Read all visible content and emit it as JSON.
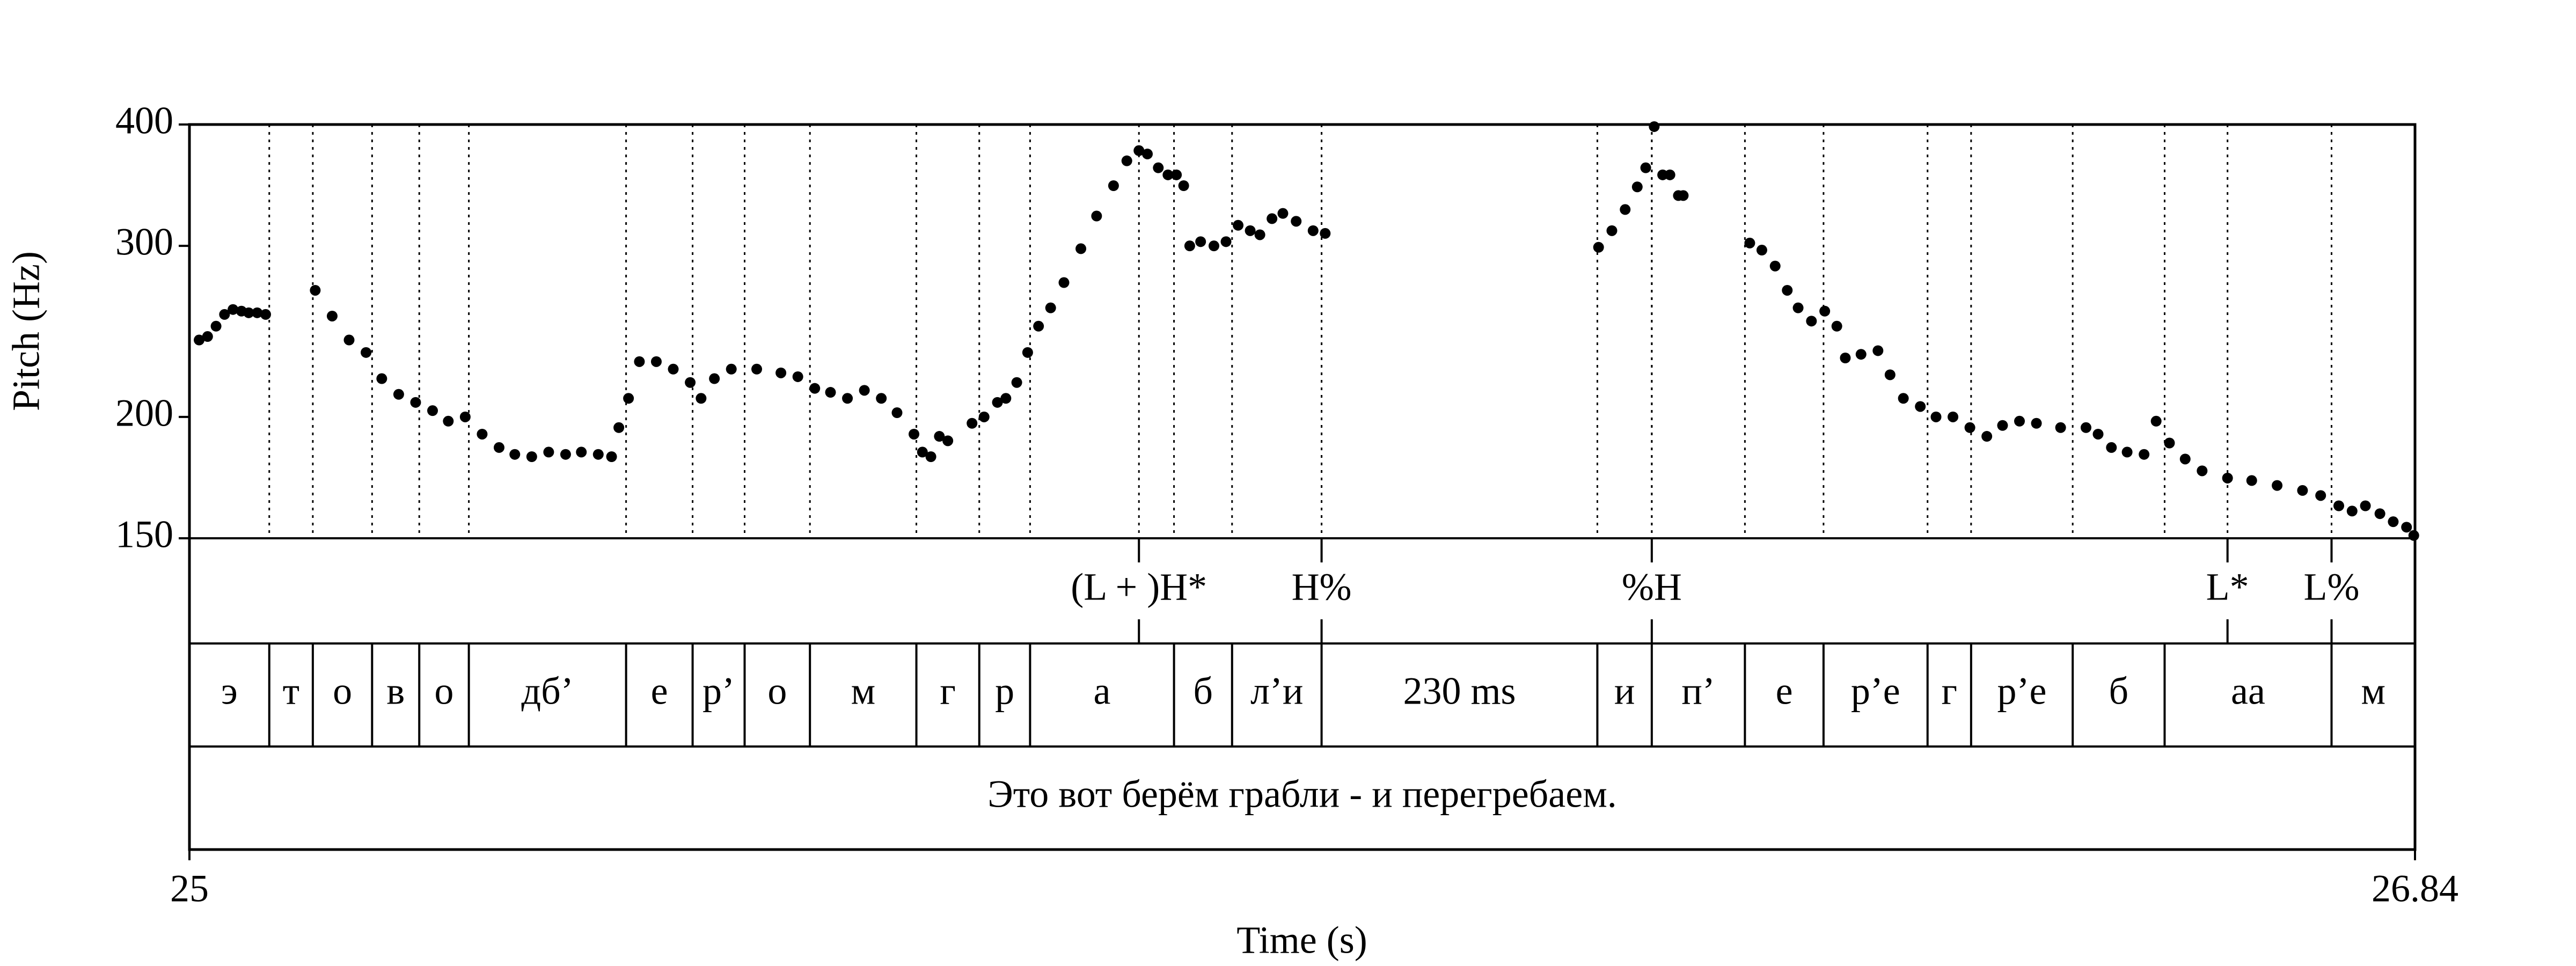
{
  "chart_data": {
    "type": "scatter",
    "xlabel": "Time (s)",
    "ylabel": "Pitch (Hz)",
    "xlim": [
      25,
      26.84
    ],
    "xticks": [
      25,
      26.84
    ],
    "ylim": [
      150,
      400
    ],
    "yticks": [
      150,
      200,
      300,
      400
    ],
    "log_y": true,
    "color": "#000000",
    "x": [
      25.008,
      25.015,
      25.022,
      25.029,
      25.036,
      25.043,
      25.049,
      25.056,
      25.063,
      25.104,
      25.118,
      25.132,
      25.146,
      25.159,
      25.173,
      25.187,
      25.201,
      25.214,
      25.228,
      25.242,
      25.256,
      25.269,
      25.283,
      25.297,
      25.311,
      25.324,
      25.338,
      25.349,
      25.355,
      25.363,
      25.372,
      25.386,
      25.4,
      25.414,
      25.423,
      25.434,
      25.448,
      25.469,
      25.489,
      25.503,
      25.517,
      25.53,
      25.544,
      25.558,
      25.572,
      25.585,
      25.599,
      25.606,
      25.613,
      25.62,
      25.627,
      25.647,
      25.657,
      25.668,
      25.675,
      25.684,
      25.693,
      25.702,
      25.712,
      25.723,
      25.737,
      25.75,
      25.764,
      25.775,
      25.785,
      25.792,
      25.801,
      25.809,
      25.816,
      25.822,
      25.827,
      25.836,
      25.847,
      25.857,
      25.867,
      25.877,
      25.885,
      25.895,
      25.904,
      25.915,
      25.929,
      25.939,
      26.165,
      26.176,
      26.187,
      26.197,
      26.204,
      26.211,
      26.218,
      26.224,
      26.231,
      26.235,
      26.29,
      26.3,
      26.311,
      26.321,
      26.33,
      26.341,
      26.352,
      26.362,
      26.369,
      26.382,
      26.396,
      26.406,
      26.417,
      26.431,
      26.444,
      26.458,
      26.472,
      26.486,
      26.499,
      26.513,
      26.527,
      26.547,
      26.568,
      26.578,
      26.589,
      26.602,
      26.616,
      26.626,
      26.637,
      26.65,
      26.664,
      26.685,
      26.705,
      26.726,
      26.747,
      26.762,
      26.777,
      26.788,
      26.799,
      26.811,
      26.822,
      26.833,
      26.839
    ],
    "values": [
      240,
      242,
      248,
      255,
      258,
      257,
      256,
      256,
      255,
      270,
      254,
      240,
      233,
      219,
      211,
      207,
      203,
      198,
      200,
      192,
      186,
      183,
      182,
      184,
      183,
      184,
      183,
      182,
      195,
      209,
      228,
      228,
      224,
      217,
      209,
      219,
      224,
      224,
      222,
      220,
      214,
      212,
      209,
      213,
      209,
      202,
      192,
      184,
      182,
      191,
      189,
      197,
      200,
      207,
      209,
      217,
      233,
      248,
      259,
      275,
      298,
      322,
      346,
      367,
      376,
      373,
      361,
      355,
      355,
      346,
      300,
      303,
      300,
      303,
      315,
      311,
      308,
      320,
      324,
      318,
      311,
      309,
      299,
      311,
      327,
      345,
      361,
      398,
      355,
      355,
      338,
      338,
      302,
      297,
      286,
      270,
      259,
      251,
      257,
      248,
      230,
      232,
      234,
      221,
      209,
      205,
      200,
      200,
      195,
      191,
      196,
      198,
      197,
      195,
      195,
      192,
      186,
      184,
      183,
      198,
      188,
      181,
      176,
      173,
      172,
      170,
      168,
      166,
      162,
      160,
      162,
      159,
      156,
      154,
      151
    ],
    "tiers": [
      {
        "points": [
          25.785,
          25.936,
          26.209,
          26.685,
          26.771
        ],
        "labels": [
          "(L + )H*",
          "H%",
          "%H",
          "L*",
          "L%"
        ]
      },
      {
        "boundaries": [
          25.066,
          25.102,
          25.151,
          25.19,
          25.231,
          25.361,
          25.416,
          25.459,
          25.513,
          25.601,
          25.653,
          25.695,
          25.814,
          25.862,
          25.936,
          26.164,
          26.209,
          26.286,
          26.351,
          26.437,
          26.473,
          26.557,
          26.633,
          26.771
        ],
        "labels": [
          "э",
          "т",
          "о",
          "в",
          "о",
          "дб’",
          "е",
          "р’",
          "о",
          "м",
          "г",
          "р",
          "а",
          "б",
          "л’и",
          "230 ms",
          "и",
          "п’",
          "е",
          "р’е",
          "г",
          "р’е",
          "б",
          "аа",
          "м"
        ]
      },
      {
        "labels": [
          "Это вот берём грабли - и перегребаем."
        ]
      }
    ]
  }
}
